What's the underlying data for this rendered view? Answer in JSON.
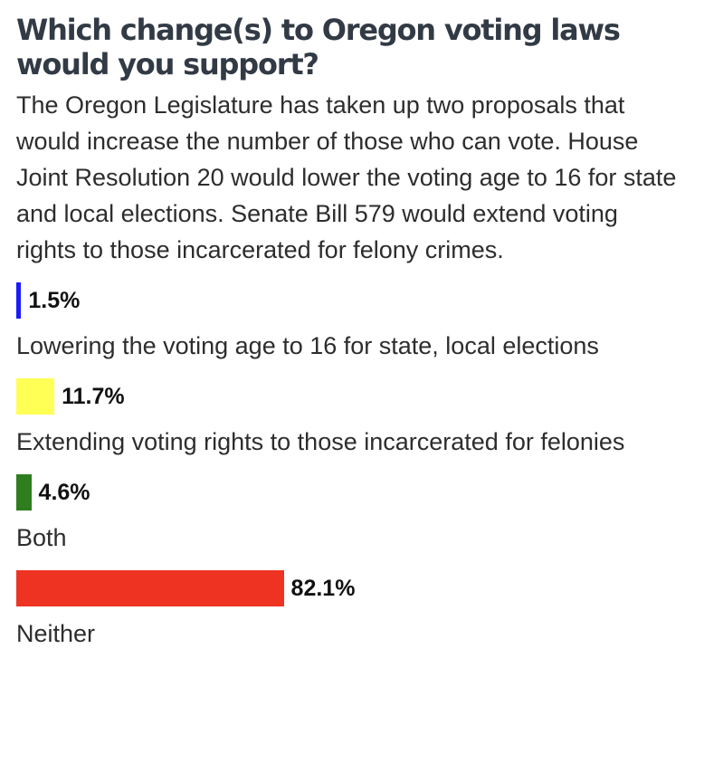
{
  "poll": {
    "title": "Which change(s) to Oregon voting laws would you support?",
    "description": "The Oregon Legislature has taken up two proposals that would increase the number of those who can vote. House Joint Resolution 20 would lower the voting age to 16 for state and local elections. Senate Bill 579 would extend voting rights to those incarcerated for felony crimes."
  },
  "chart_data": {
    "type": "bar",
    "orientation": "horizontal",
    "categories": [
      "Lowering the voting age to 16 for state, local elections",
      "Extending voting rights to those incarcerated for felonies",
      "Both",
      "Neither"
    ],
    "values": [
      1.5,
      11.7,
      4.6,
      82.1
    ],
    "value_labels": [
      "1.5%",
      "11.7%",
      "4.6%",
      "82.1%"
    ],
    "colors": [
      "#1a1aff",
      "#ffff55",
      "#2e7d1f",
      "#ee3322"
    ],
    "xlim": [
      0,
      100
    ],
    "grid": false,
    "legend": "none"
  }
}
